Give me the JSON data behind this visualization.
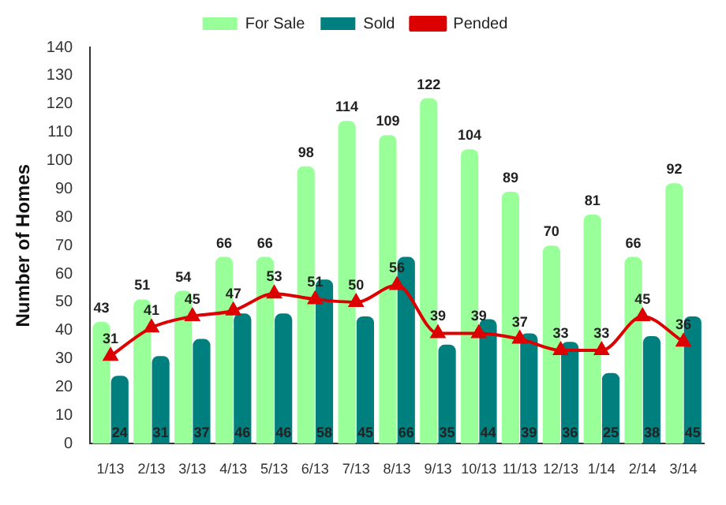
{
  "chart_data": {
    "type": "bar",
    "ylabel": "Number of Homes",
    "categories": [
      "1/13",
      "2/13",
      "3/13",
      "4/13",
      "5/13",
      "6/13",
      "7/13",
      "8/13",
      "9/13",
      "10/13",
      "11/13",
      "12/13",
      "1/14",
      "2/14",
      "3/14"
    ],
    "series": [
      {
        "name": "For Sale",
        "color": "#99ff99",
        "values": [
          43,
          51,
          54,
          66,
          66,
          98,
          114,
          109,
          122,
          104,
          89,
          70,
          81,
          66,
          92
        ]
      },
      {
        "name": "Sold",
        "color": "#007f7f",
        "values": [
          24,
          31,
          37,
          46,
          46,
          58,
          45,
          66,
          35,
          44,
          39,
          36,
          25,
          38,
          45
        ]
      },
      {
        "name": "Pended",
        "type": "line",
        "color": "#dd0000",
        "marker": "triangle",
        "values": [
          31,
          41,
          45,
          47,
          53,
          51,
          50,
          56,
          39,
          39,
          37,
          33,
          33,
          45,
          36
        ]
      }
    ],
    "ylim": [
      0,
      140
    ],
    "yticks": [
      0,
      10,
      20,
      30,
      40,
      50,
      60,
      70,
      80,
      90,
      100,
      110,
      120,
      130,
      140
    ],
    "grid": false,
    "legend": "top",
    "data_labels": true
  }
}
